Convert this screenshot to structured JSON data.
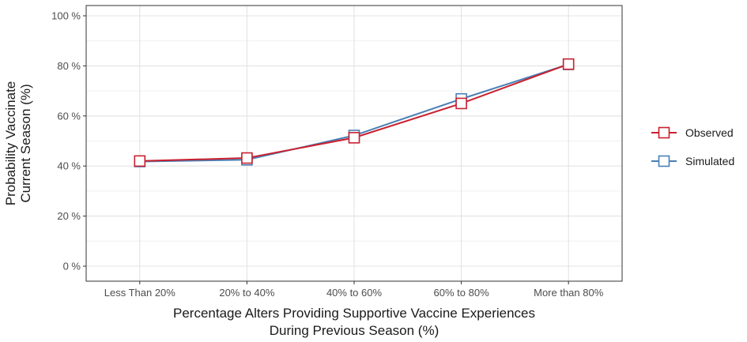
{
  "chart_data": {
    "type": "line",
    "categories": [
      "Less Than 20%",
      "20% to 40%",
      "40% to 60%",
      "60% to 80%",
      "More than 80%"
    ],
    "series": [
      {
        "name": "Observed",
        "values": [
          42,
          43.2,
          51.3,
          65,
          80.7
        ],
        "color": "#c8202f"
      },
      {
        "name": "Simulated",
        "values": [
          41.8,
          42.5,
          52.2,
          66.8,
          80.6
        ],
        "color": "#4a7fb5"
      }
    ],
    "ylim": [
      0,
      100
    ],
    "y_ticks": [
      0,
      20,
      40,
      60,
      80,
      100
    ],
    "y_tick_labels": [
      "0 %",
      "20 %",
      "40 %",
      "60 %",
      "80 %",
      "100 %"
    ],
    "ylabel_lines": [
      "Probability Vaccinate",
      "Current Season (%)"
    ],
    "xlabel_lines": [
      "Percentage Alters Providing Supportive Vaccine Experiences",
      "During Previous Season (%)"
    ],
    "marker": "open-square",
    "grid": true,
    "legend_position": "right"
  }
}
